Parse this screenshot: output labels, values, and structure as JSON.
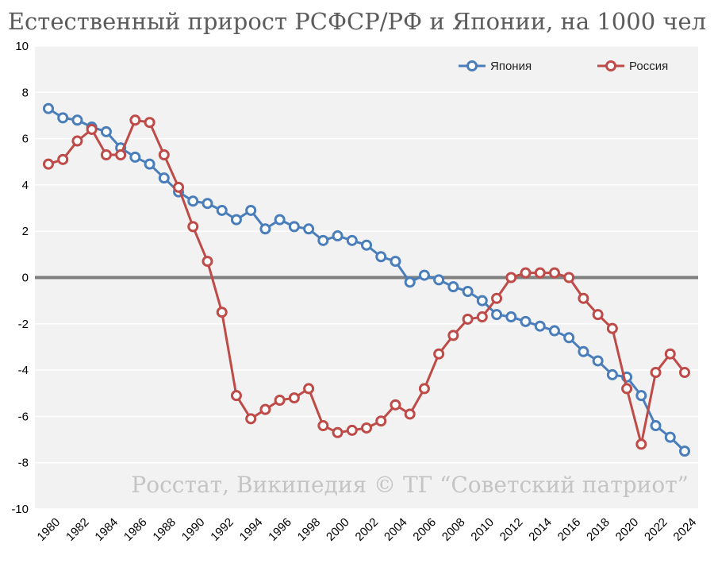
{
  "chart_data": {
    "type": "line",
    "title": "Естественный прирост РСФСР/РФ и Японии, на 1000 чел",
    "xlabel": "",
    "ylabel": "",
    "ylim": [
      -10,
      10
    ],
    "yticks": [
      10,
      8,
      6,
      4,
      2,
      0,
      -2,
      -4,
      -6,
      -8,
      -10
    ],
    "xlim": [
      1980,
      2024
    ],
    "xticks": [
      1980,
      1982,
      1984,
      1986,
      1988,
      1990,
      1992,
      1994,
      1996,
      1998,
      2000,
      2002,
      2004,
      2006,
      2008,
      2010,
      2012,
      2014,
      2016,
      2018,
      2020,
      2022,
      2024
    ],
    "grid": true,
    "legend_position": "top-right",
    "x": [
      1980,
      1981,
      1982,
      1983,
      1984,
      1985,
      1986,
      1987,
      1988,
      1989,
      1990,
      1991,
      1992,
      1993,
      1994,
      1995,
      1996,
      1997,
      1998,
      1999,
      2000,
      2001,
      2002,
      2003,
      2004,
      2005,
      2006,
      2007,
      2008,
      2009,
      2010,
      2011,
      2012,
      2013,
      2014,
      2015,
      2016,
      2017,
      2018,
      2019,
      2020,
      2021,
      2022,
      2023,
      2024
    ],
    "series": [
      {
        "name": "Япония",
        "color": "#4a7ebb",
        "values": [
          7.3,
          6.9,
          6.8,
          6.5,
          6.3,
          5.6,
          5.2,
          4.9,
          4.3,
          3.7,
          3.3,
          3.2,
          2.9,
          2.5,
          2.9,
          2.1,
          2.5,
          2.2,
          2.1,
          1.6,
          1.8,
          1.6,
          1.4,
          0.9,
          0.7,
          -0.2,
          0.1,
          -0.1,
          -0.4,
          -0.6,
          -1.0,
          -1.6,
          -1.7,
          -1.9,
          -2.1,
          -2.3,
          -2.6,
          -3.2,
          -3.6,
          -4.2,
          -4.3,
          -5.1,
          -6.4,
          -6.9,
          -7.5
        ]
      },
      {
        "name": "Россия",
        "color": "#be4b48",
        "values": [
          4.9,
          5.1,
          5.9,
          6.4,
          5.3,
          5.3,
          6.8,
          6.7,
          5.3,
          3.9,
          2.2,
          0.7,
          -1.5,
          -5.1,
          -6.1,
          -5.7,
          -5.3,
          -5.2,
          -4.8,
          -6.4,
          -6.7,
          -6.6,
          -6.5,
          -6.2,
          -5.5,
          -5.9,
          -4.8,
          -3.3,
          -2.5,
          -1.8,
          -1.7,
          -0.9,
          0.0,
          0.2,
          0.2,
          0.2,
          0.0,
          -0.9,
          -1.6,
          -2.2,
          -4.8,
          -7.2,
          -4.1,
          -3.3,
          -4.1
        ]
      }
    ],
    "annotation": "Росстат, Википедия © ТГ “Советский патриот”"
  }
}
